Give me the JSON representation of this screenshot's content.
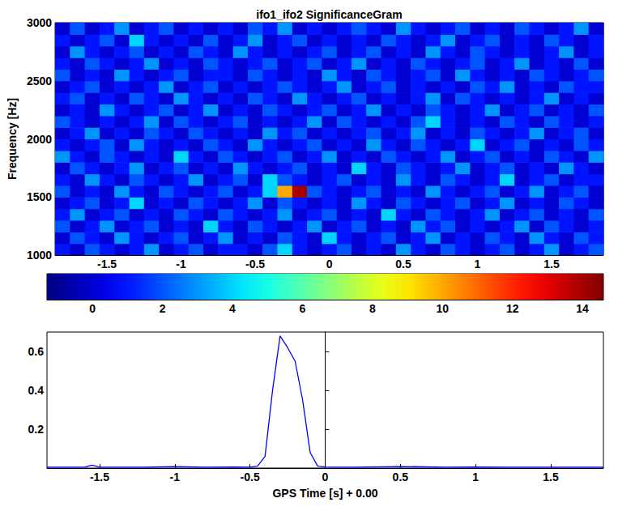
{
  "chart_data": [
    {
      "type": "heatmap",
      "title": "ifo1_ifo2 SignificanceGram",
      "y_label": "Frequency [Hz]",
      "x": [
        -1.8,
        -1.7,
        -1.6,
        -1.5,
        -1.4,
        -1.3,
        -1.2,
        -1.1,
        -1,
        -0.9,
        -0.8,
        -0.7,
        -0.6,
        -0.5,
        -0.4,
        -0.3,
        -0.2,
        -0.1,
        0,
        0.1,
        0.2,
        0.3,
        0.4,
        0.5,
        0.6,
        0.7,
        0.8,
        0.9,
        1,
        1.1,
        1.2,
        1.3,
        1.4,
        1.5,
        1.6,
        1.7,
        1.8
      ],
      "y": [
        1050,
        1150,
        1250,
        1350,
        1450,
        1550,
        1650,
        1750,
        1850,
        1950,
        2050,
        2150,
        2250,
        2350,
        2450,
        2550,
        2650,
        2750,
        2850,
        2950
      ],
      "cells": [
        [
          1,
          0,
          2,
          1,
          0,
          1,
          3,
          0,
          1,
          2,
          0,
          1,
          1,
          0,
          2,
          4,
          1,
          0,
          1,
          2,
          0,
          1,
          0,
          3,
          1,
          0,
          2,
          1,
          0,
          1,
          2,
          0,
          1,
          3,
          0,
          1,
          2
        ],
        [
          0,
          2,
          1,
          0,
          3,
          1,
          0,
          1,
          2,
          0,
          1,
          3,
          0,
          1,
          0,
          2,
          1,
          0,
          4,
          1,
          0,
          1,
          2,
          0,
          1,
          3,
          0,
          1,
          0,
          2,
          1,
          0,
          3,
          1,
          0,
          2,
          1
        ],
        [
          2,
          0,
          1,
          3,
          0,
          1,
          2,
          0,
          1,
          0,
          4,
          1,
          0,
          2,
          1,
          0,
          1,
          3,
          0,
          1,
          2,
          0,
          1,
          0,
          3,
          1,
          2,
          0,
          1,
          0,
          1,
          3,
          0,
          2,
          1,
          0,
          1
        ],
        [
          1,
          3,
          0,
          1,
          2,
          0,
          1,
          0,
          2,
          1,
          0,
          2,
          1,
          0,
          1,
          3,
          0,
          1,
          2,
          0,
          1,
          0,
          4,
          1,
          0,
          2,
          1,
          0,
          1,
          3,
          0,
          1,
          2,
          0,
          1,
          0,
          2
        ],
        [
          0,
          1,
          2,
          0,
          1,
          4,
          0,
          1,
          0,
          2,
          1,
          0,
          1,
          3,
          0,
          2,
          1,
          0,
          1,
          0,
          3,
          1,
          0,
          2,
          1,
          0,
          1,
          2,
          0,
          1,
          3,
          0,
          1,
          0,
          2,
          1,
          0
        ],
        [
          2,
          0,
          1,
          0,
          3,
          1,
          0,
          2,
          1,
          0,
          1,
          2,
          0,
          1,
          4,
          10,
          14,
          2,
          1,
          0,
          1,
          2,
          0,
          1,
          0,
          3,
          1,
          0,
          1,
          2,
          0,
          1,
          3,
          0,
          1,
          2,
          0
        ],
        [
          1,
          0,
          3,
          1,
          0,
          2,
          1,
          0,
          1,
          3,
          0,
          1,
          2,
          0,
          4,
          2,
          1,
          0,
          1,
          2,
          0,
          1,
          0,
          3,
          1,
          0,
          2,
          1,
          0,
          1,
          4,
          0,
          1,
          2,
          0,
          1,
          1
        ],
        [
          0,
          2,
          1,
          0,
          1,
          3,
          0,
          1,
          2,
          0,
          1,
          0,
          3,
          1,
          0,
          1,
          2,
          0,
          1,
          0,
          4,
          1,
          0,
          2,
          1,
          0,
          1,
          3,
          0,
          1,
          2,
          0,
          1,
          0,
          3,
          1,
          0
        ],
        [
          3,
          1,
          0,
          2,
          1,
          0,
          1,
          0,
          4,
          1,
          0,
          2,
          1,
          0,
          1,
          2,
          0,
          1,
          3,
          0,
          1,
          0,
          2,
          1,
          0,
          1,
          3,
          0,
          1,
          2,
          0,
          1,
          0,
          2,
          1,
          0,
          3
        ],
        [
          1,
          0,
          1,
          2,
          0,
          3,
          1,
          0,
          1,
          0,
          2,
          1,
          0,
          3,
          1,
          0,
          1,
          2,
          0,
          1,
          0,
          3,
          1,
          0,
          2,
          1,
          0,
          1,
          4,
          0,
          1,
          2,
          0,
          1,
          0,
          2,
          1
        ],
        [
          0,
          1,
          3,
          0,
          1,
          0,
          2,
          1,
          0,
          2,
          1,
          0,
          1,
          0,
          3,
          1,
          2,
          0,
          1,
          0,
          1,
          2,
          0,
          1,
          3,
          0,
          1,
          0,
          2,
          1,
          0,
          1,
          3,
          0,
          1,
          2,
          0
        ],
        [
          2,
          1,
          0,
          1,
          0,
          1,
          3,
          0,
          2,
          1,
          0,
          1,
          2,
          0,
          1,
          0,
          1,
          3,
          0,
          2,
          1,
          0,
          1,
          0,
          2,
          4,
          1,
          0,
          1,
          0,
          2,
          1,
          0,
          2,
          1,
          0,
          1
        ],
        [
          0,
          1,
          0,
          3,
          1,
          0,
          1,
          2,
          0,
          1,
          3,
          0,
          1,
          0,
          2,
          1,
          0,
          1,
          2,
          0,
          1,
          3,
          0,
          1,
          0,
          2,
          1,
          0,
          1,
          3,
          0,
          1,
          2,
          0,
          1,
          0,
          2
        ],
        [
          1,
          2,
          0,
          1,
          0,
          2,
          1,
          0,
          3,
          1,
          0,
          1,
          0,
          2,
          1,
          0,
          3,
          1,
          0,
          1,
          2,
          0,
          1,
          0,
          1,
          3,
          0,
          2,
          1,
          0,
          1,
          0,
          1,
          3,
          0,
          1,
          0
        ],
        [
          0,
          1,
          2,
          0,
          1,
          0,
          1,
          3,
          0,
          1,
          2,
          0,
          1,
          0,
          1,
          2,
          1,
          0,
          1,
          3,
          0,
          1,
          2,
          0,
          1,
          0,
          1,
          0,
          2,
          1,
          3,
          0,
          1,
          0,
          2,
          1,
          1
        ],
        [
          2,
          0,
          1,
          0,
          3,
          1,
          0,
          1,
          2,
          0,
          1,
          1,
          0,
          2,
          1,
          0,
          1,
          0,
          3,
          1,
          0,
          2,
          1,
          0,
          1,
          2,
          0,
          3,
          1,
          0,
          1,
          0,
          2,
          1,
          0,
          1,
          2
        ],
        [
          1,
          0,
          2,
          1,
          0,
          1,
          3,
          0,
          1,
          0,
          2,
          1,
          0,
          1,
          2,
          0,
          1,
          2,
          0,
          1,
          3,
          0,
          1,
          0,
          2,
          1,
          0,
          1,
          2,
          0,
          1,
          3,
          0,
          1,
          0,
          2,
          0
        ],
        [
          0,
          3,
          1,
          0,
          1,
          2,
          0,
          1,
          0,
          2,
          1,
          0,
          3,
          1,
          0,
          1,
          0,
          1,
          2,
          0,
          1,
          2,
          0,
          1,
          0,
          3,
          1,
          0,
          2,
          1,
          0,
          1,
          0,
          1,
          3,
          0,
          1
        ],
        [
          1,
          0,
          1,
          2,
          0,
          4,
          1,
          0,
          1,
          0,
          2,
          0,
          1,
          3,
          0,
          1,
          2,
          0,
          1,
          0,
          1,
          0,
          2,
          1,
          0,
          1,
          3,
          0,
          1,
          2,
          0,
          1,
          0,
          2,
          1,
          0,
          1
        ],
        [
          0,
          2,
          0,
          1,
          3,
          0,
          1,
          2,
          0,
          1,
          0,
          1,
          0,
          2,
          1,
          3,
          0,
          1,
          0,
          1,
          2,
          1,
          0,
          3,
          1,
          0,
          1,
          2,
          0,
          1,
          0,
          2,
          1,
          0,
          1,
          3,
          0
        ]
      ],
      "xlim": [
        -1.85,
        1.85
      ],
      "xticks": [
        -1.5,
        -1,
        -0.5,
        0,
        0.5,
        1,
        1.5
      ],
      "ylim": [
        1000,
        3000
      ],
      "yticks": [
        1000,
        1500,
        2000,
        2500,
        3000
      ],
      "colorbar": {
        "range": [
          -1.3,
          14.6
        ],
        "ticks": [
          0,
          2,
          4,
          6,
          8,
          10,
          12,
          14
        ]
      }
    },
    {
      "type": "line",
      "x_label": "GPS Time [s] + 0.00",
      "x": [
        -1.85,
        -1.6,
        -1.55,
        -1.5,
        -1.2,
        -1,
        -0.8,
        -0.6,
        -0.5,
        -0.45,
        -0.4,
        -0.35,
        -0.3,
        -0.25,
        -0.2,
        -0.15,
        -0.1,
        -0.05,
        0,
        0.2,
        0.5,
        0.8,
        1,
        1.2,
        1.5,
        1.85
      ],
      "values": [
        0.005,
        0.005,
        0.015,
        0.005,
        0.005,
        0.008,
        0.005,
        0.006,
        0.005,
        0.01,
        0.06,
        0.4,
        0.68,
        0.62,
        0.55,
        0.35,
        0.08,
        0.01,
        0.006,
        0.005,
        0.008,
        0.005,
        0.006,
        0.005,
        0.005,
        0.005
      ],
      "color": "#0000ff",
      "xlim": [
        -1.85,
        1.85
      ],
      "xticks": [
        -1.5,
        -1,
        -0.5,
        0,
        0.5,
        1,
        1.5
      ],
      "ylim": [
        0,
        0.7
      ],
      "yticks": [
        0.2,
        0.4,
        0.6
      ]
    }
  ]
}
